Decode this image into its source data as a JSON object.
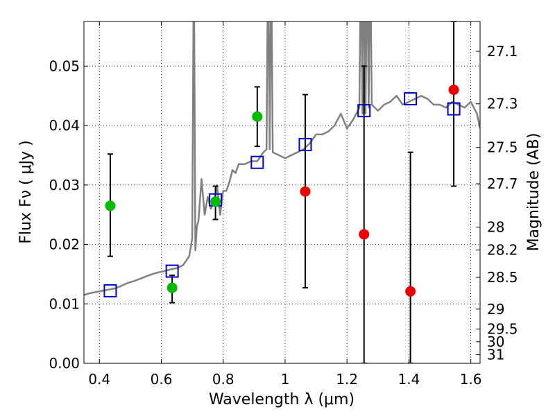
{
  "chart_data": {
    "type": "scatter",
    "title": "",
    "xlabel": "Wavelength  λ (μm)",
    "ylabel": "Flux  Fν  ( μJy )",
    "y2label": "Magnitude (AB)",
    "xlim": [
      0.35,
      1.63
    ],
    "ylim": [
      0.0,
      0.0575
    ],
    "grid": true,
    "xticks": [
      0.4,
      0.6,
      0.8,
      1.0,
      1.2,
      1.4,
      1.6
    ],
    "xtick_labels": [
      "0.4",
      "0.6",
      "0.8",
      "1",
      "1.2",
      "1.4",
      "1.6"
    ],
    "yticks": [
      0.0,
      0.01,
      0.02,
      0.03,
      0.04,
      0.05
    ],
    "ytick_labels": [
      "0.00",
      "0.01",
      "0.02",
      "0.03",
      "0.04",
      "0.05"
    ],
    "y2ticks": [
      {
        "label": "27.1",
        "mag": 27.1
      },
      {
        "label": "27.3",
        "mag": 27.3
      },
      {
        "label": "27.5",
        "mag": 27.5
      },
      {
        "label": "27.7",
        "mag": 27.7
      },
      {
        "label": "28",
        "mag": 28.0
      },
      {
        "label": "28.2",
        "mag": 28.2
      },
      {
        "label": "28.5",
        "mag": 28.5
      },
      {
        "label": "29",
        "mag": 29.0
      },
      {
        "label": "29.5",
        "mag": 29.5
      },
      {
        "label": "30",
        "mag": 30.0
      },
      {
        "label": "31",
        "mag": 31.0
      }
    ],
    "series": [
      {
        "kind": "model-spectrum",
        "color": "#808080",
        "x": [
          0.35,
          0.37,
          0.39,
          0.41,
          0.43,
          0.45,
          0.47,
          0.49,
          0.51,
          0.53,
          0.55,
          0.57,
          0.59,
          0.61,
          0.63,
          0.65,
          0.67,
          0.69,
          0.7,
          0.705,
          0.71,
          0.715,
          0.72,
          0.73,
          0.74,
          0.75,
          0.76,
          0.77,
          0.78,
          0.79,
          0.8,
          0.81,
          0.82,
          0.83,
          0.84,
          0.85,
          0.87,
          0.89,
          0.91,
          0.93,
          0.94,
          0.945,
          0.95,
          0.955,
          0.96,
          0.98,
          1.0,
          1.02,
          1.04,
          1.06,
          1.08,
          1.1,
          1.12,
          1.14,
          1.16,
          1.18,
          1.2,
          1.22,
          1.24,
          1.245,
          1.25,
          1.255,
          1.26,
          1.265,
          1.27,
          1.275,
          1.28,
          1.3,
          1.32,
          1.34,
          1.36,
          1.38,
          1.4,
          1.42,
          1.44,
          1.46,
          1.48,
          1.5,
          1.52,
          1.54,
          1.56,
          1.58,
          1.6,
          1.62,
          1.63
        ],
        "y": [
          0.0115,
          0.0118,
          0.012,
          0.0122,
          0.0124,
          0.0126,
          0.013,
          0.0135,
          0.0138,
          0.0142,
          0.0146,
          0.015,
          0.0153,
          0.0155,
          0.0158,
          0.016,
          0.0165,
          0.018,
          0.021,
          0.07,
          0.019,
          0.023,
          0.024,
          0.031,
          0.025,
          0.028,
          0.026,
          0.027,
          0.03,
          0.025,
          0.029,
          0.029,
          0.0305,
          0.0325,
          0.032,
          0.0335,
          0.0335,
          0.034,
          0.034,
          0.0355,
          0.036,
          0.07,
          0.036,
          0.07,
          0.0355,
          0.035,
          0.0345,
          0.035,
          0.0355,
          0.036,
          0.037,
          0.0385,
          0.0385,
          0.039,
          0.04,
          0.042,
          0.0395,
          0.041,
          0.043,
          0.07,
          0.042,
          0.07,
          0.042,
          0.07,
          0.043,
          0.07,
          0.0435,
          0.0425,
          0.0435,
          0.044,
          0.045,
          0.0435,
          0.044,
          0.0445,
          0.045,
          0.0445,
          0.0435,
          0.0435,
          0.043,
          0.044,
          0.0435,
          0.043,
          0.044,
          0.042,
          0.0395
        ]
      },
      {
        "kind": "model-photometry",
        "marker": "open-square",
        "color": "#0000cc",
        "x": [
          0.435,
          0.635,
          0.775,
          0.91,
          1.065,
          1.255,
          1.405,
          1.545
        ],
        "y": [
          0.0122,
          0.0155,
          0.0275,
          0.0338,
          0.0368,
          0.0425,
          0.0445,
          0.0428
        ]
      },
      {
        "kind": "detections",
        "marker": "filled-circle",
        "color": "#00bb00",
        "x": [
          0.435,
          0.635,
          0.775,
          0.91
        ],
        "y": [
          0.0265,
          0.0127,
          0.0272,
          0.0415
        ],
        "yerr_low": [
          0.018,
          0.0102,
          0.0242,
          0.0365
        ],
        "yerr_high": [
          0.0352,
          0.0148,
          0.0298,
          0.0465
        ]
      },
      {
        "kind": "non-detections",
        "marker": "filled-circle",
        "color": "#ee0000",
        "x": [
          1.065,
          1.255,
          1.405,
          1.545
        ],
        "y": [
          0.0289,
          0.0217,
          0.0121,
          0.046
        ],
        "yerr_low": [
          0.0127,
          0.0,
          0.0,
          0.0298
        ],
        "yerr_high": [
          0.0452,
          0.05,
          0.0355,
          0.0575
        ]
      }
    ]
  }
}
